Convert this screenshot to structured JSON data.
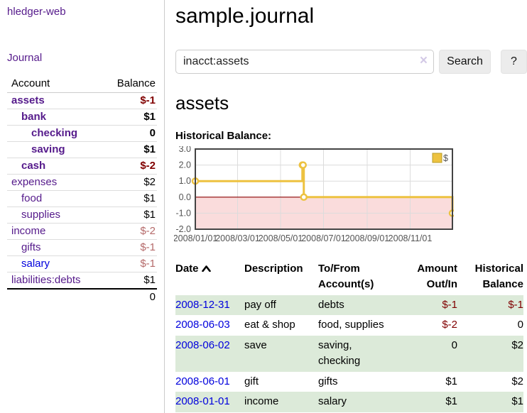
{
  "app": {
    "title": "hledger-web"
  },
  "sidebar": {
    "journal_link": "Journal",
    "account_header": "Account",
    "balance_header": "Balance",
    "accounts": [
      {
        "name": "assets",
        "balance": "$-1"
      },
      {
        "name": "bank",
        "balance": "$1"
      },
      {
        "name": "checking",
        "balance": "0"
      },
      {
        "name": "saving",
        "balance": "$1"
      },
      {
        "name": "cash",
        "balance": "$-2"
      },
      {
        "name": "expenses",
        "balance": "$2"
      },
      {
        "name": "food",
        "balance": "$1"
      },
      {
        "name": "supplies",
        "balance": "$1"
      },
      {
        "name": "income",
        "balance": "$-2"
      },
      {
        "name": "gifts",
        "balance": "$-1"
      },
      {
        "name": "salary",
        "balance": "$-1"
      },
      {
        "name": "liabilities:debts",
        "balance": "$1"
      }
    ],
    "total": "0"
  },
  "main": {
    "title": "sample.journal",
    "search": {
      "value": "inacct:assets",
      "clear_icon": "×",
      "search_label": "Search",
      "help_label": "?"
    },
    "account_heading": "assets",
    "chart_label": "Historical Balance:"
  },
  "chart_data": {
    "type": "line",
    "title": "Historical Balance:",
    "step": true,
    "x_start": "2008-01-01",
    "x_range_days": 365,
    "ylim": [
      -2,
      3
    ],
    "y_ticks": [
      3.0,
      2.0,
      1.0,
      0.0,
      -1.0,
      -2.0
    ],
    "x_ticks": [
      {
        "label": "2008/01/01",
        "date": "2008-01-01"
      },
      {
        "label": "2008/03/01",
        "date": "2008-03-01"
      },
      {
        "label": "2008/05/01",
        "date": "2008-05-01"
      },
      {
        "label": "2008/07/01",
        "date": "2008-07-01"
      },
      {
        "label": "2008/09/01",
        "date": "2008-09-01"
      },
      {
        "label": "2008/11/01",
        "date": "2008-11-01"
      }
    ],
    "series": [
      {
        "name": "$",
        "color": "#edc240",
        "points": [
          [
            "2008-01-01",
            1
          ],
          [
            "2008-06-01",
            2
          ],
          [
            "2008-06-02",
            2
          ],
          [
            "2008-06-03",
            0
          ],
          [
            "2008-12-31",
            -1
          ]
        ]
      }
    ],
    "grid": true,
    "negative_region_color": "#fadcdc",
    "zero_line_color": "#8b0000",
    "legend": {
      "position": "top-right",
      "label": "$"
    }
  },
  "register": {
    "headers": {
      "date": "Date",
      "description": "Description",
      "accounts": "To/From Account(s)",
      "amount": "Amount Out/In",
      "balance": "Historical Balance"
    },
    "rows": [
      {
        "date": "2008-12-31",
        "description": "pay off",
        "accounts": "debts",
        "amount": "$-1",
        "balance": "$-1"
      },
      {
        "date": "2008-06-03",
        "description": "eat & shop",
        "accounts": "food, supplies",
        "amount": "$-2",
        "balance": "0"
      },
      {
        "date": "2008-06-02",
        "description": "save",
        "accounts": "saving, checking",
        "amount": "0",
        "balance": "$2"
      },
      {
        "date": "2008-06-01",
        "description": "gift",
        "accounts": "gifts",
        "amount": "$1",
        "balance": "$2"
      },
      {
        "date": "2008-01-01",
        "description": "income",
        "accounts": "salary",
        "amount": "$1",
        "balance": "$1"
      }
    ]
  }
}
